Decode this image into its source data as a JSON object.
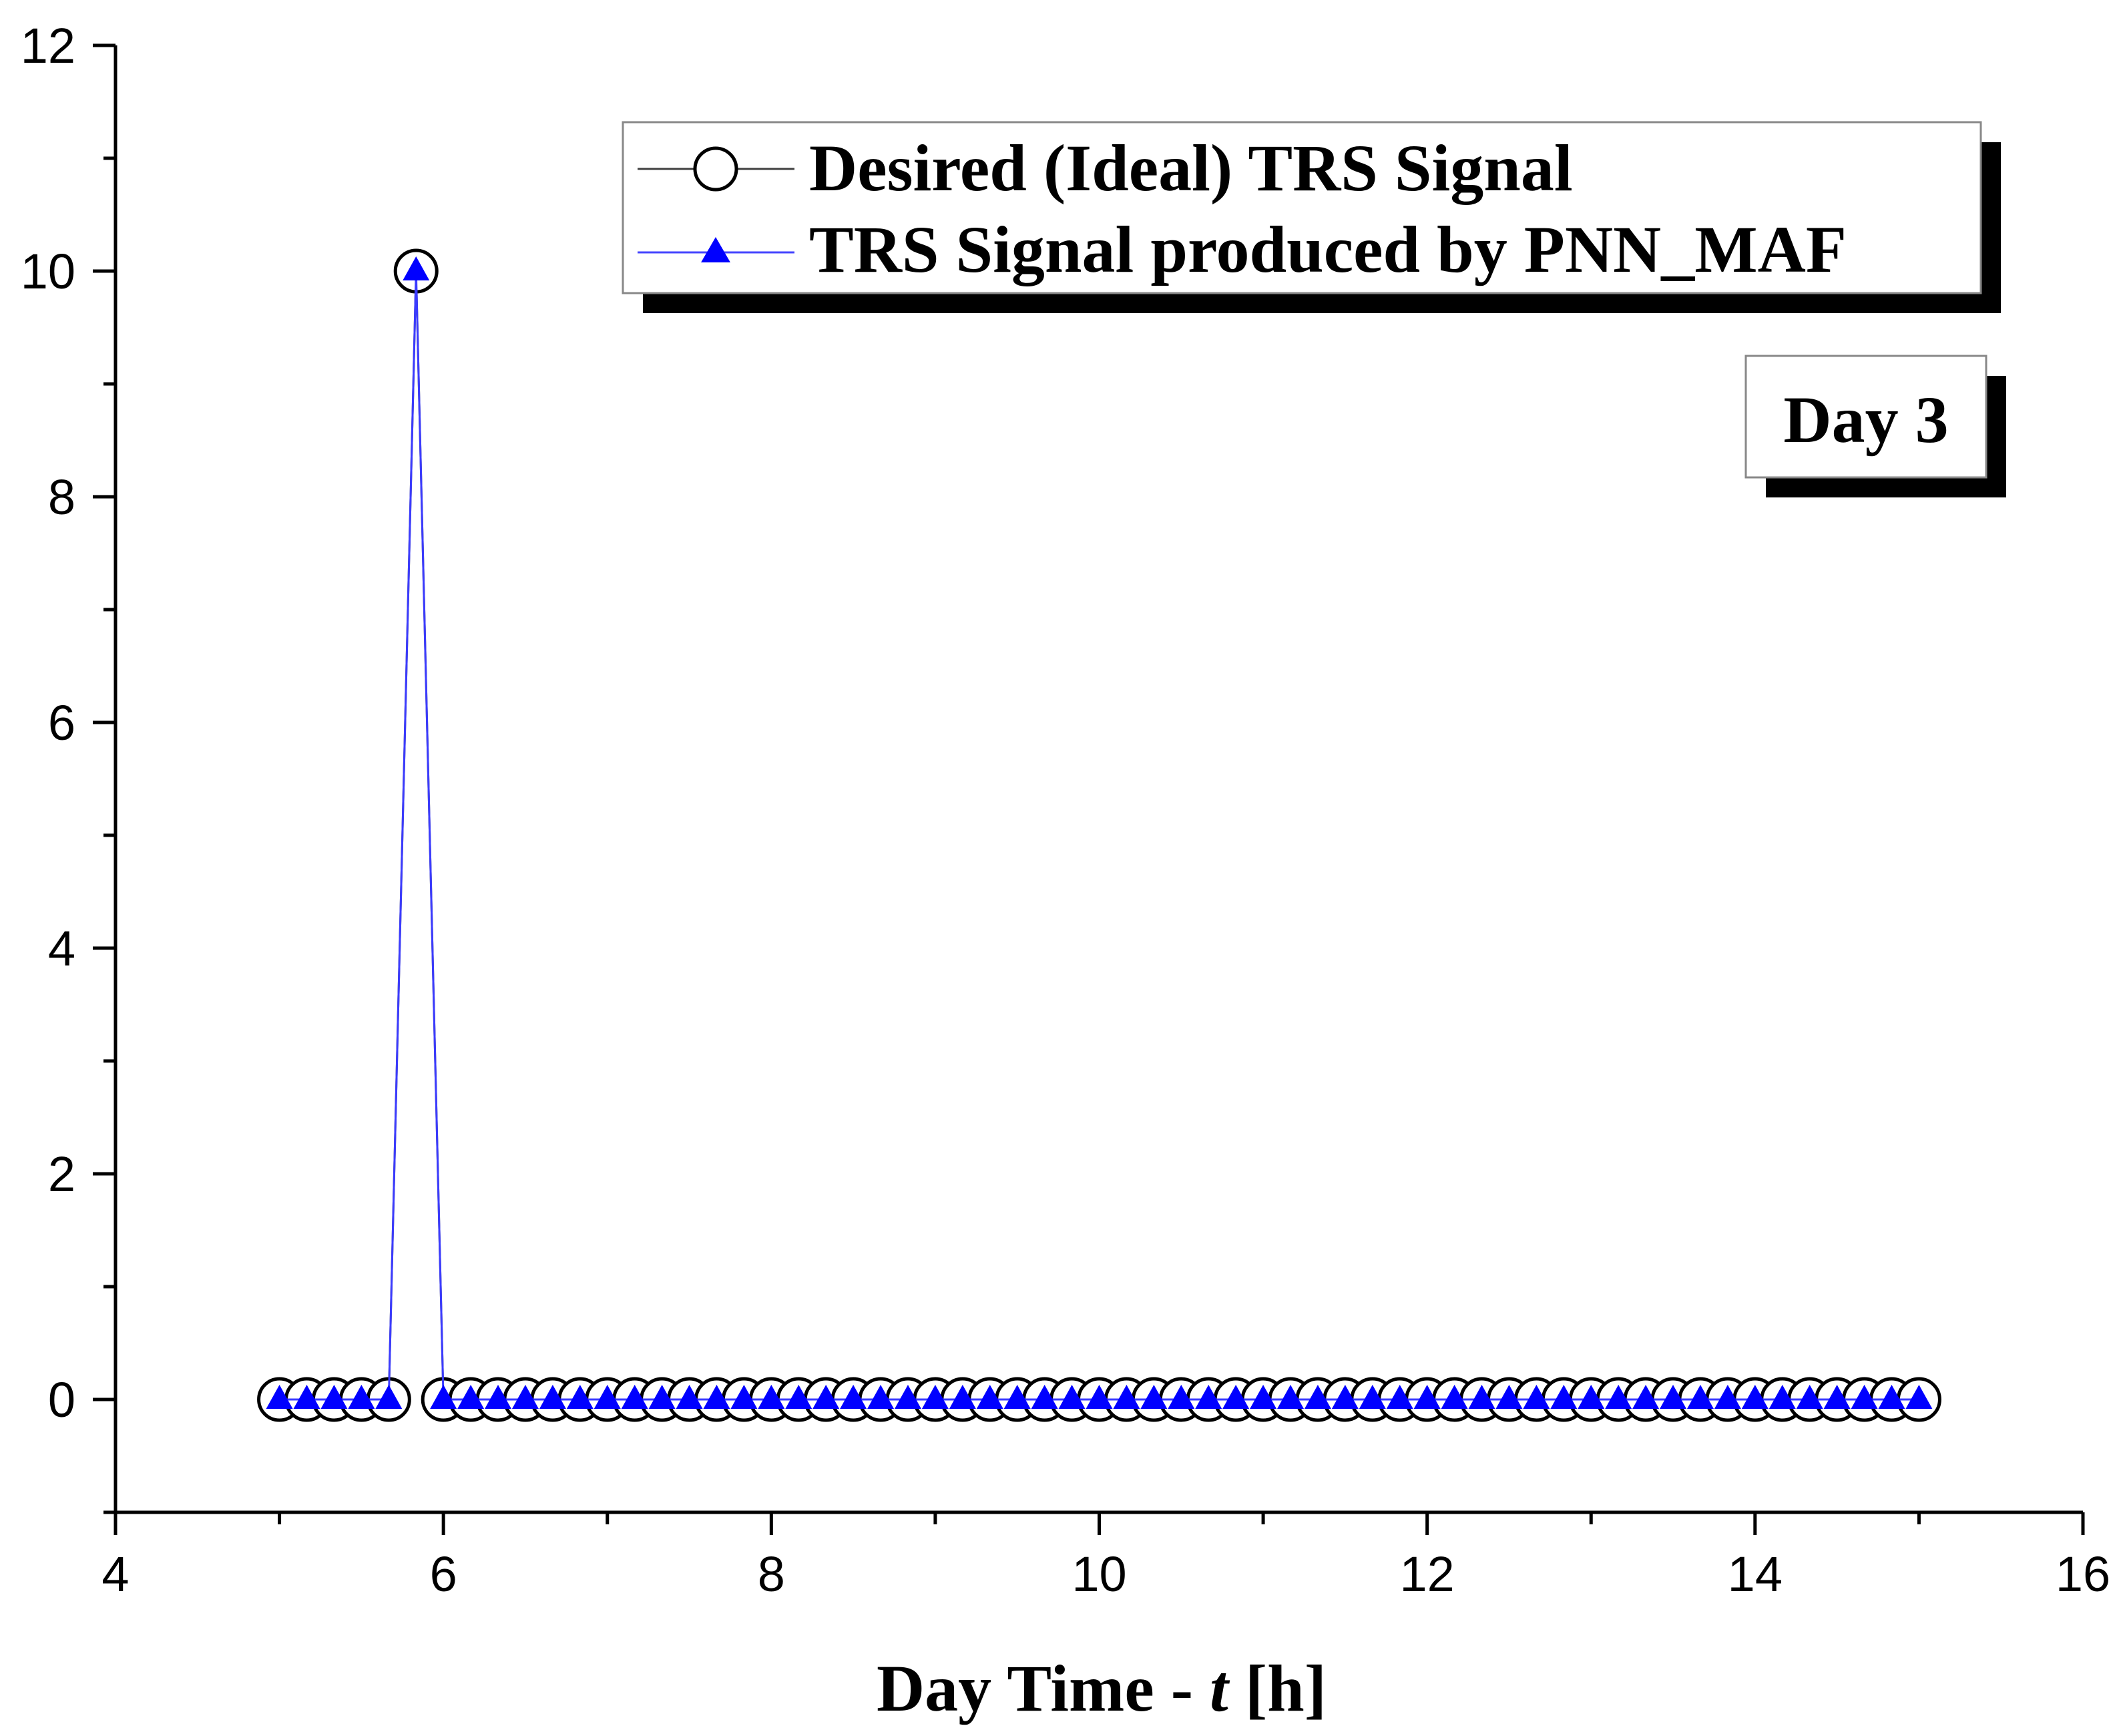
{
  "chart_data": {
    "type": "line",
    "xlabel": "Day Time - t [h]",
    "xlabel_prefix": "Day Time - ",
    "xlabel_var": "t",
    "xlabel_suffix": " [h]",
    "ylabel": "",
    "xlim": [
      4,
      16
    ],
    "ylim": [
      -1,
      12
    ],
    "xticks": [
      4,
      6,
      8,
      10,
      12,
      14,
      16
    ],
    "yticks": [
      0,
      2,
      4,
      6,
      8,
      10,
      12
    ],
    "x": [
      5.0,
      5.1667,
      5.3333,
      5.5,
      5.6667,
      5.8333,
      6.0,
      6.1667,
      6.3333,
      6.5,
      6.6667,
      6.8333,
      7.0,
      7.1667,
      7.3333,
      7.5,
      7.6667,
      7.8333,
      8.0,
      8.1667,
      8.3333,
      8.5,
      8.6667,
      8.8333,
      9.0,
      9.1667,
      9.3333,
      9.5,
      9.6667,
      9.8333,
      10.0,
      10.1667,
      10.3333,
      10.5,
      10.6667,
      10.8333,
      11.0,
      11.1667,
      11.3333,
      11.5,
      11.6667,
      11.8333,
      12.0,
      12.1667,
      12.3333,
      12.5,
      12.6667,
      12.8333,
      13.0,
      13.1667,
      13.3333,
      13.5,
      13.6667,
      13.8333,
      14.0,
      14.1667,
      14.3333,
      14.5,
      14.6667,
      14.8333,
      15.0
    ],
    "series": [
      {
        "name": "Desired (Ideal) TRS Signal",
        "color": "#404040",
        "marker": "circle",
        "values": [
          0,
          0,
          0,
          0,
          0,
          10,
          0,
          0,
          0,
          0,
          0,
          0,
          0,
          0,
          0,
          0,
          0,
          0,
          0,
          0,
          0,
          0,
          0,
          0,
          0,
          0,
          0,
          0,
          0,
          0,
          0,
          0,
          0,
          0,
          0,
          0,
          0,
          0,
          0,
          0,
          0,
          0,
          0,
          0,
          0,
          0,
          0,
          0,
          0,
          0,
          0,
          0,
          0,
          0,
          0,
          0,
          0,
          0,
          0,
          0,
          0
        ]
      },
      {
        "name": "TRS Signal produced by PNN_MAF",
        "color": "#0000ff",
        "marker": "triangle",
        "values": [
          0,
          0,
          0,
          0,
          0,
          10,
          0,
          0,
          0,
          0,
          0,
          0,
          0,
          0,
          0,
          0,
          0,
          0,
          0,
          0,
          0,
          0,
          0,
          0,
          0,
          0,
          0,
          0,
          0,
          0,
          0,
          0,
          0,
          0,
          0,
          0,
          0,
          0,
          0,
          0,
          0,
          0,
          0,
          0,
          0,
          0,
          0,
          0,
          0,
          0,
          0,
          0,
          0,
          0,
          0,
          0,
          0,
          0,
          0,
          0,
          0
        ]
      }
    ],
    "legend_position": "top-right",
    "annotation": "Day 3",
    "grid": false
  }
}
